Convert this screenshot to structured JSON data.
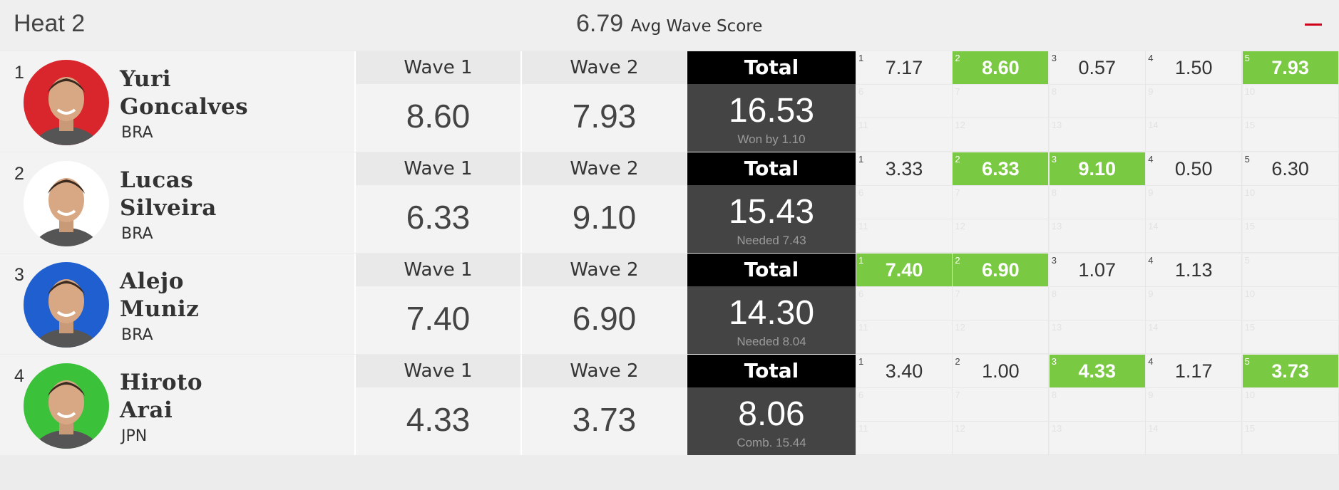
{
  "heat": {
    "title": "Heat 2",
    "avg_value": "6.79",
    "avg_label": "Avg Wave Score",
    "collapse_icon": "minus-icon",
    "accent": "#d0021b"
  },
  "labels": {
    "wave1": "Wave 1",
    "wave2": "Wave 2",
    "total": "Total"
  },
  "colors": {
    "highlight": "#7ac943",
    "total_bg": "#444444",
    "total_head": "#000000"
  },
  "athletes": [
    {
      "rank": "1",
      "first": "Yuri",
      "last": "Goncalves",
      "country": "BRA",
      "avatar_bg": "#d9262c",
      "wave1": "8.60",
      "wave2": "7.93",
      "total": "16.53",
      "note": "Won by 1.10",
      "waves": [
        {
          "n": "1",
          "v": "7.17",
          "hi": false
        },
        {
          "n": "2",
          "v": "8.60",
          "hi": true
        },
        {
          "n": "3",
          "v": "0.57",
          "hi": false
        },
        {
          "n": "4",
          "v": "1.50",
          "hi": false
        },
        {
          "n": "5",
          "v": "7.93",
          "hi": true
        },
        {
          "n": "6",
          "v": "",
          "hi": false
        },
        {
          "n": "7",
          "v": "",
          "hi": false
        },
        {
          "n": "8",
          "v": "",
          "hi": false
        },
        {
          "n": "9",
          "v": "",
          "hi": false
        },
        {
          "n": "10",
          "v": "",
          "hi": false
        },
        {
          "n": "11",
          "v": "",
          "hi": false
        },
        {
          "n": "12",
          "v": "",
          "hi": false
        },
        {
          "n": "13",
          "v": "",
          "hi": false
        },
        {
          "n": "14",
          "v": "",
          "hi": false
        },
        {
          "n": "15",
          "v": "",
          "hi": false
        }
      ]
    },
    {
      "rank": "2",
      "first": "Lucas",
      "last": "Silveira",
      "country": "BRA",
      "avatar_bg": "#ffffff",
      "wave1": "6.33",
      "wave2": "9.10",
      "total": "15.43",
      "note": "Needed 7.43",
      "waves": [
        {
          "n": "1",
          "v": "3.33",
          "hi": false
        },
        {
          "n": "2",
          "v": "6.33",
          "hi": true
        },
        {
          "n": "3",
          "v": "9.10",
          "hi": true
        },
        {
          "n": "4",
          "v": "0.50",
          "hi": false
        },
        {
          "n": "5",
          "v": "6.30",
          "hi": false
        },
        {
          "n": "6",
          "v": "",
          "hi": false
        },
        {
          "n": "7",
          "v": "",
          "hi": false
        },
        {
          "n": "8",
          "v": "",
          "hi": false
        },
        {
          "n": "9",
          "v": "",
          "hi": false
        },
        {
          "n": "10",
          "v": "",
          "hi": false
        },
        {
          "n": "11",
          "v": "",
          "hi": false
        },
        {
          "n": "12",
          "v": "",
          "hi": false
        },
        {
          "n": "13",
          "v": "",
          "hi": false
        },
        {
          "n": "14",
          "v": "",
          "hi": false
        },
        {
          "n": "15",
          "v": "",
          "hi": false
        }
      ]
    },
    {
      "rank": "3",
      "first": "Alejo",
      "last": "Muniz",
      "country": "BRA",
      "avatar_bg": "#1f5fcf",
      "wave1": "7.40",
      "wave2": "6.90",
      "total": "14.30",
      "note": "Needed 8.04",
      "waves": [
        {
          "n": "1",
          "v": "7.40",
          "hi": true
        },
        {
          "n": "2",
          "v": "6.90",
          "hi": true
        },
        {
          "n": "3",
          "v": "1.07",
          "hi": false
        },
        {
          "n": "4",
          "v": "1.13",
          "hi": false
        },
        {
          "n": "5",
          "v": "",
          "hi": false
        },
        {
          "n": "6",
          "v": "",
          "hi": false
        },
        {
          "n": "7",
          "v": "",
          "hi": false
        },
        {
          "n": "8",
          "v": "",
          "hi": false
        },
        {
          "n": "9",
          "v": "",
          "hi": false
        },
        {
          "n": "10",
          "v": "",
          "hi": false
        },
        {
          "n": "11",
          "v": "",
          "hi": false
        },
        {
          "n": "12",
          "v": "",
          "hi": false
        },
        {
          "n": "13",
          "v": "",
          "hi": false
        },
        {
          "n": "14",
          "v": "",
          "hi": false
        },
        {
          "n": "15",
          "v": "",
          "hi": false
        }
      ]
    },
    {
      "rank": "4",
      "first": "Hiroto",
      "last": "Arai",
      "country": "JPN",
      "avatar_bg": "#3cc23a",
      "wave1": "4.33",
      "wave2": "3.73",
      "total": "8.06",
      "note": "Comb. 15.44",
      "waves": [
        {
          "n": "1",
          "v": "3.40",
          "hi": false
        },
        {
          "n": "2",
          "v": "1.00",
          "hi": false
        },
        {
          "n": "3",
          "v": "4.33",
          "hi": true
        },
        {
          "n": "4",
          "v": "1.17",
          "hi": false
        },
        {
          "n": "5",
          "v": "3.73",
          "hi": true
        },
        {
          "n": "6",
          "v": "",
          "hi": false
        },
        {
          "n": "7",
          "v": "",
          "hi": false
        },
        {
          "n": "8",
          "v": "",
          "hi": false
        },
        {
          "n": "9",
          "v": "",
          "hi": false
        },
        {
          "n": "10",
          "v": "",
          "hi": false
        },
        {
          "n": "11",
          "v": "",
          "hi": false
        },
        {
          "n": "12",
          "v": "",
          "hi": false
        },
        {
          "n": "13",
          "v": "",
          "hi": false
        },
        {
          "n": "14",
          "v": "",
          "hi": false
        },
        {
          "n": "15",
          "v": "",
          "hi": false
        }
      ]
    }
  ]
}
